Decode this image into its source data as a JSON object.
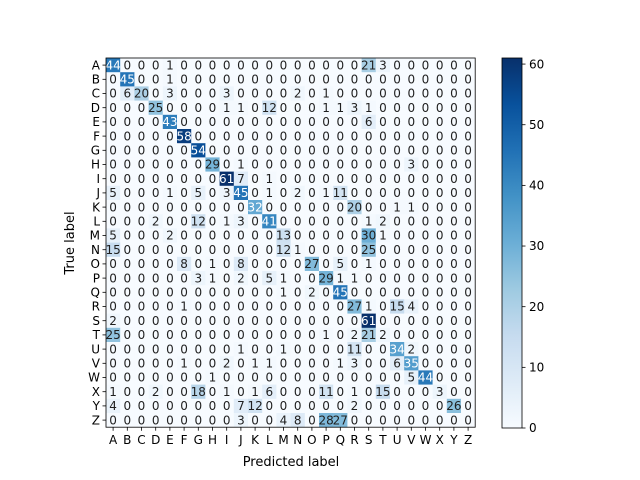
{
  "chart_data": {
    "type": "heatmap",
    "title": "",
    "xlabel": "Predicted label",
    "ylabel": "True label",
    "x_categories": [
      "A",
      "B",
      "C",
      "D",
      "E",
      "F",
      "G",
      "H",
      "I",
      "J",
      "K",
      "L",
      "M",
      "N",
      "O",
      "P",
      "Q",
      "R",
      "S",
      "T",
      "U",
      "V",
      "W",
      "X",
      "Y",
      "Z"
    ],
    "y_categories": [
      "A",
      "B",
      "C",
      "D",
      "E",
      "F",
      "G",
      "H",
      "I",
      "J",
      "K",
      "L",
      "M",
      "N",
      "O",
      "P",
      "Q",
      "R",
      "S",
      "T",
      "U",
      "V",
      "W",
      "X",
      "Y",
      "Z"
    ],
    "values": [
      [
        44,
        0,
        0,
        0,
        1,
        0,
        0,
        0,
        0,
        0,
        0,
        0,
        0,
        0,
        0,
        0,
        0,
        0,
        21,
        3,
        0,
        0,
        0,
        0,
        0,
        0
      ],
      [
        0,
        45,
        0,
        0,
        1,
        0,
        0,
        0,
        0,
        0,
        0,
        0,
        0,
        0,
        0,
        0,
        0,
        0,
        0,
        0,
        0,
        0,
        0,
        0,
        0,
        0
      ],
      [
        0,
        6,
        20,
        0,
        3,
        0,
        0,
        0,
        3,
        0,
        0,
        0,
        0,
        2,
        0,
        1,
        0,
        0,
        0,
        0,
        0,
        0,
        0,
        0,
        0,
        0
      ],
      [
        0,
        0,
        0,
        25,
        0,
        0,
        0,
        0,
        1,
        1,
        0,
        12,
        0,
        0,
        0,
        1,
        1,
        3,
        1,
        0,
        0,
        0,
        0,
        0,
        0,
        0
      ],
      [
        0,
        0,
        0,
        0,
        43,
        0,
        0,
        0,
        0,
        0,
        0,
        0,
        0,
        0,
        0,
        0,
        0,
        0,
        6,
        0,
        0,
        0,
        0,
        0,
        0,
        0
      ],
      [
        0,
        0,
        0,
        0,
        0,
        58,
        0,
        0,
        0,
        0,
        0,
        0,
        0,
        0,
        0,
        0,
        0,
        0,
        0,
        0,
        0,
        0,
        0,
        0,
        0,
        0
      ],
      [
        0,
        0,
        0,
        0,
        0,
        0,
        54,
        0,
        0,
        0,
        0,
        0,
        0,
        0,
        0,
        0,
        0,
        0,
        0,
        0,
        0,
        0,
        0,
        0,
        0,
        0
      ],
      [
        0,
        0,
        0,
        0,
        0,
        0,
        0,
        29,
        0,
        1,
        0,
        0,
        0,
        0,
        0,
        0,
        0,
        0,
        0,
        0,
        0,
        3,
        0,
        0,
        0,
        0
      ],
      [
        0,
        0,
        0,
        0,
        0,
        0,
        0,
        0,
        61,
        7,
        0,
        1,
        0,
        0,
        0,
        0,
        0,
        0,
        0,
        0,
        0,
        0,
        0,
        0,
        0,
        0
      ],
      [
        5,
        0,
        0,
        0,
        1,
        0,
        5,
        0,
        3,
        45,
        0,
        1,
        0,
        2,
        0,
        1,
        11,
        0,
        0,
        0,
        0,
        0,
        0,
        0,
        0,
        0
      ],
      [
        0,
        0,
        0,
        0,
        0,
        0,
        0,
        0,
        0,
        0,
        32,
        0,
        0,
        0,
        0,
        0,
        0,
        20,
        0,
        0,
        1,
        1,
        0,
        0,
        0,
        0
      ],
      [
        0,
        0,
        0,
        2,
        0,
        0,
        12,
        0,
        1,
        3,
        0,
        41,
        0,
        0,
        0,
        0,
        0,
        0,
        1,
        2,
        0,
        0,
        0,
        0,
        0,
        0
      ],
      [
        5,
        0,
        0,
        0,
        2,
        0,
        0,
        0,
        0,
        0,
        0,
        0,
        13,
        0,
        0,
        0,
        0,
        0,
        30,
        1,
        0,
        0,
        0,
        0,
        0,
        0
      ],
      [
        15,
        0,
        0,
        0,
        0,
        0,
        0,
        0,
        0,
        0,
        0,
        0,
        12,
        1,
        0,
        0,
        0,
        0,
        25,
        0,
        0,
        0,
        0,
        0,
        0,
        0
      ],
      [
        0,
        0,
        0,
        0,
        0,
        8,
        0,
        1,
        0,
        8,
        0,
        0,
        0,
        0,
        27,
        0,
        5,
        0,
        1,
        0,
        0,
        0,
        0,
        0,
        0,
        0
      ],
      [
        0,
        0,
        0,
        0,
        0,
        0,
        3,
        1,
        0,
        2,
        0,
        5,
        1,
        0,
        0,
        29,
        1,
        1,
        0,
        0,
        0,
        0,
        0,
        0,
        0,
        0
      ],
      [
        0,
        0,
        0,
        0,
        0,
        0,
        0,
        0,
        0,
        0,
        0,
        0,
        1,
        0,
        2,
        0,
        45,
        0,
        0,
        0,
        0,
        0,
        0,
        0,
        0,
        0
      ],
      [
        0,
        0,
        0,
        0,
        0,
        1,
        0,
        0,
        0,
        0,
        0,
        0,
        0,
        0,
        0,
        0,
        0,
        27,
        1,
        0,
        15,
        4,
        0,
        0,
        0,
        0
      ],
      [
        2,
        0,
        0,
        0,
        0,
        0,
        0,
        0,
        0,
        0,
        0,
        0,
        0,
        0,
        0,
        0,
        0,
        0,
        61,
        0,
        0,
        0,
        0,
        0,
        0,
        0
      ],
      [
        25,
        0,
        0,
        0,
        0,
        0,
        0,
        0,
        0,
        0,
        0,
        0,
        0,
        0,
        0,
        1,
        0,
        2,
        21,
        2,
        0,
        0,
        0,
        0,
        0,
        0
      ],
      [
        0,
        0,
        0,
        0,
        0,
        0,
        0,
        0,
        0,
        1,
        0,
        0,
        1,
        0,
        0,
        0,
        0,
        11,
        0,
        0,
        34,
        2,
        0,
        0,
        0,
        0
      ],
      [
        0,
        0,
        0,
        0,
        0,
        1,
        0,
        0,
        2,
        0,
        1,
        1,
        0,
        0,
        0,
        0,
        1,
        3,
        0,
        0,
        6,
        35,
        0,
        0,
        0,
        0
      ],
      [
        0,
        0,
        0,
        0,
        0,
        0,
        0,
        1,
        0,
        0,
        0,
        0,
        0,
        0,
        0,
        0,
        0,
        0,
        0,
        0,
        0,
        5,
        44,
        0,
        0,
        0
      ],
      [
        1,
        0,
        0,
        2,
        0,
        0,
        18,
        0,
        1,
        0,
        1,
        6,
        0,
        0,
        0,
        11,
        0,
        1,
        0,
        15,
        0,
        0,
        0,
        3,
        0,
        0
      ],
      [
        4,
        0,
        0,
        0,
        0,
        0,
        0,
        0,
        0,
        7,
        12,
        0,
        0,
        0,
        0,
        0,
        0,
        2,
        0,
        0,
        0,
        0,
        0,
        0,
        26,
        0
      ],
      [
        0,
        0,
        0,
        0,
        0,
        0,
        0,
        0,
        0,
        3,
        0,
        0,
        4,
        8,
        0,
        28,
        27,
        0,
        0,
        0,
        0,
        0,
        0,
        0,
        0,
        0
      ]
    ],
    "colormap": "Blues",
    "vmin": 0,
    "vmax": 61,
    "colorbar_ticks": [
      0,
      10,
      20,
      30,
      40,
      50,
      60
    ],
    "grid": false,
    "legend": "colorbar-right"
  }
}
